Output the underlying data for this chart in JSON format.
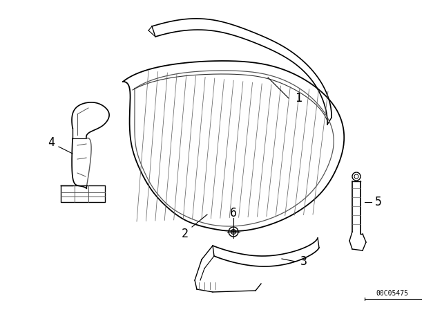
{
  "background_color": "#ffffff",
  "line_color": "#000000",
  "watermark": "00C05475",
  "fig_width": 6.4,
  "fig_height": 4.48,
  "dpi": 100
}
